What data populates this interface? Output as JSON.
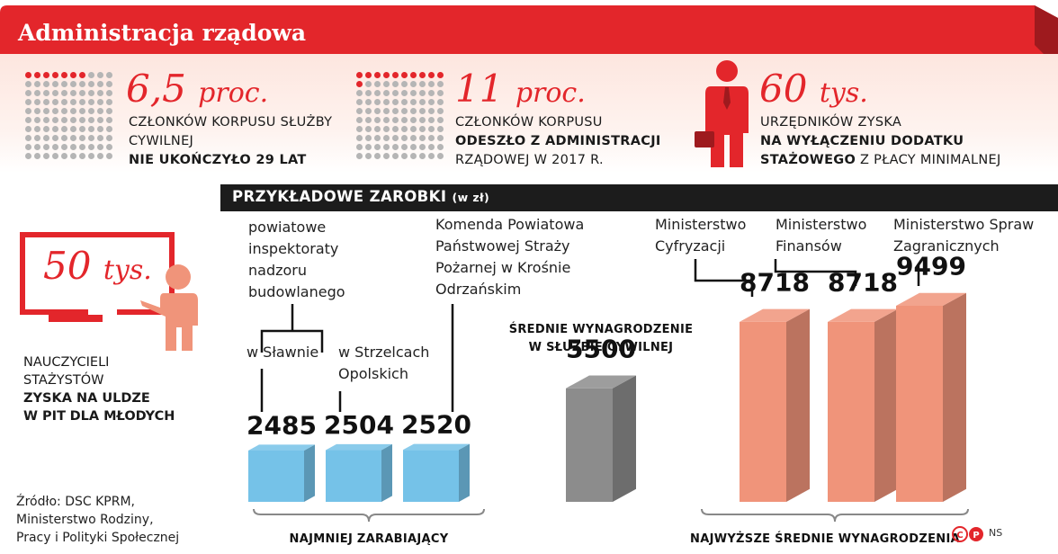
{
  "header": {
    "title": "Administracja rządowa",
    "accent_color": "#e3262b"
  },
  "stats": [
    {
      "value": "6,5",
      "unit": "proc.",
      "desc_normal": "członków korpusu służby cywilnej",
      "desc_bold": "nie ukończyło 29 lat",
      "dots_total": 100,
      "dots_highlight_fraction": 0.065
    },
    {
      "value": "11",
      "unit": "proc.",
      "desc_normal_1": "członków korpusu",
      "desc_bold": "odeszło z administracji",
      "desc_normal_2": "rządowej w 2017 r.",
      "dots_total": 100,
      "dots_highlight_fraction": 0.11
    },
    {
      "value": "60",
      "unit": "tys.",
      "desc_normal_1": "urzędników zyska",
      "desc_bold_1": "na wyłączeniu dodatku",
      "desc_bold_2": "stażowego",
      "desc_normal_2": "z płacy minimalnej",
      "icon": "businessman-icon"
    }
  ],
  "teacher": {
    "value": "50",
    "unit": "tys.",
    "desc_1": "nauczycieli",
    "desc_2": "stażystów",
    "desc_bold_1": "zyska na uldze",
    "desc_bold_2": "w PIT",
    "desc_normal_3": "dla młodych",
    "icon": "teacher-board-icon"
  },
  "chart_data": {
    "type": "bar",
    "title": "Przykładowe zarobki",
    "title_unit": "(w zł)",
    "group_labels": {
      "left": "powiatowe inspektoraty nadzoru budowlanego"
    },
    "categories": [
      "w Sławnie",
      "w Strzelcach Opolskich",
      "Komenda Powiatowa Państwowej Straży Pożarnej w Krośnie Odrzańskim",
      "Średnie wynagrodzenie w służbie cywilnej",
      "Ministerstwo Cyfryzacji",
      "Ministerstwo Finansów",
      "Ministerstwo Spraw Zagranicznych"
    ],
    "values": [
      2485,
      2504,
      2520,
      5500,
      8718,
      8718,
      9499
    ],
    "value_labels": [
      "2485",
      "2504",
      "2520",
      "5500",
      "8718",
      "8718",
      "9499"
    ],
    "label_lines": [
      [
        "w Sławnie"
      ],
      [
        "w Strzelcach",
        "Opolskich"
      ],
      [
        "Komenda Powiatowa",
        "Państwowej Straży",
        "Pożarnej w Krośnie",
        "Odrzańskim"
      ],
      [
        "Średnie wynagrodzenie",
        "w służbie cywilnej"
      ],
      [
        "Ministerstwo",
        "Cyfryzacji"
      ],
      [
        "Ministerstwo",
        "Finansów"
      ],
      [
        "Ministerstwo Spraw",
        "Zagranicznych"
      ]
    ],
    "group_line_labels": [
      "powiatowe",
      "inspektoraty",
      "nadzoru",
      "budowlanego"
    ],
    "colors": {
      "low": "#75c2e8",
      "mid": "#8c8c8c",
      "high": "#f0947a"
    },
    "bracket_labels": {
      "low": "Najmniej zarabiający",
      "high": "Najwyższe średnie wynagrodzenia"
    }
  },
  "footer": {
    "source_lines": [
      "Źródło: DSC KPRM,",
      "Ministerstwo Rodziny,",
      "Pracy i Polityki Społecznej"
    ],
    "credit": "NS"
  }
}
